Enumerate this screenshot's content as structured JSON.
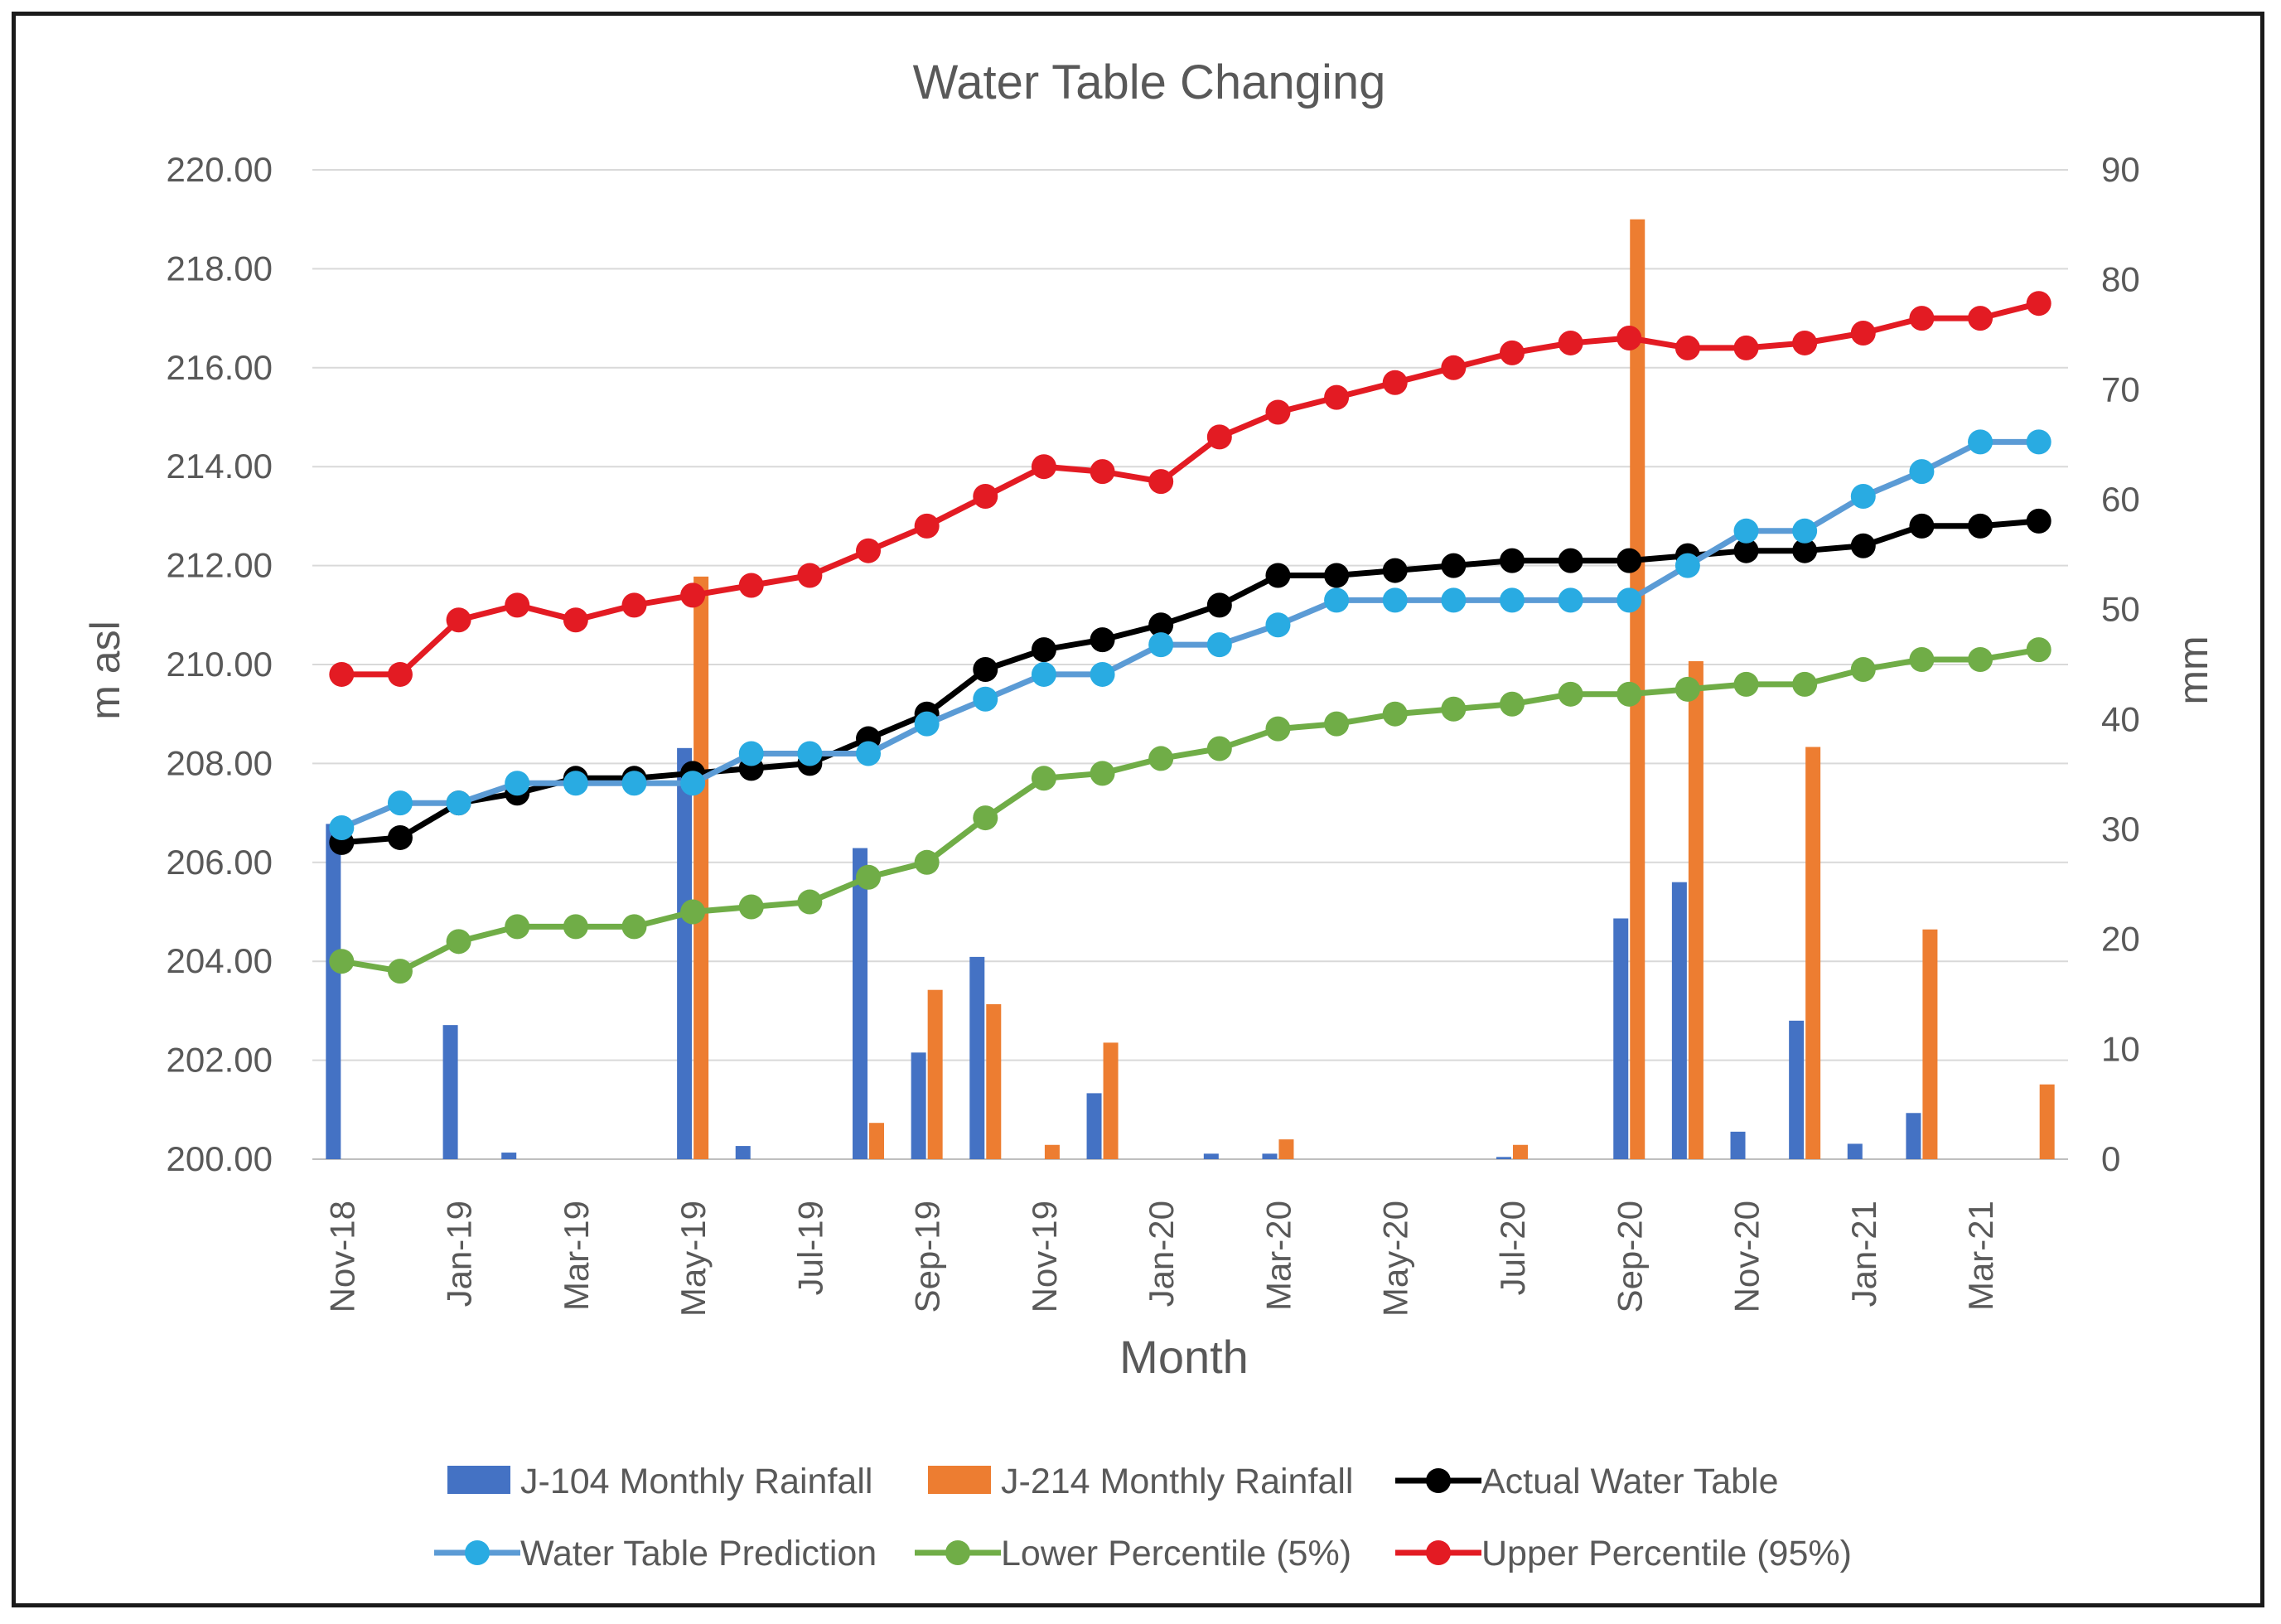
{
  "chart_data": {
    "type": "bar+line",
    "title": "Water Table Changing",
    "xlabel": "Month",
    "ylabel_left": "m asl",
    "ylabel_right": "mm",
    "ylim_left": [
      200,
      220
    ],
    "ylim_right": [
      0,
      90
    ],
    "grid": true,
    "legend_placement": "bottom",
    "months": [
      "Nov-18",
      "Dec-18",
      "Jan-19",
      "Feb-19",
      "Mar-19",
      "Apr-19",
      "May-19",
      "Jun-19",
      "Jul-19",
      "Aug-19",
      "Sep-19",
      "Oct-19",
      "Nov-19",
      "Dec-19",
      "Jan-20",
      "Feb-20",
      "Mar-20",
      "Apr-20",
      "May-20",
      "Jun-20",
      "Jul-20",
      "Aug-20",
      "Sep-20",
      "Oct-20",
      "Nov-20",
      "Dec-20",
      "Jan-21",
      "Feb-21",
      "Mar-21",
      "Apr-21"
    ],
    "x_tick_labels": [
      "Nov-18",
      "Jan-19",
      "Mar-19",
      "May-19",
      "Jul-19",
      "Sep-19",
      "Nov-19",
      "Jan-20",
      "Mar-20",
      "May-20",
      "Jul-20",
      "Sep-20",
      "Nov-20",
      "Jan-21",
      "Mar-21"
    ],
    "y_left_ticks": [
      "200.00",
      "202.00",
      "204.00",
      "206.00",
      "208.00",
      "210.00",
      "212.00",
      "214.00",
      "216.00",
      "218.00",
      "220.00"
    ],
    "y_right_ticks": [
      "0",
      "10",
      "20",
      "30",
      "40",
      "50",
      "60",
      "70",
      "80",
      "90"
    ],
    "series": [
      {
        "name": "J-104 Monthly Rainfall",
        "kind": "bar",
        "axis": "right",
        "color": "#4472C4",
        "values": [
          30.5,
          0,
          12.2,
          0.6,
          0,
          0,
          37.4,
          1.2,
          0,
          28.3,
          9.7,
          18.4,
          0,
          6.0,
          0,
          0.5,
          0.5,
          0,
          0,
          0,
          0.2,
          0,
          21.9,
          25.2,
          2.5,
          12.6,
          1.4,
          4.2,
          0,
          0
        ]
      },
      {
        "name": "J-214 Monthly Rainfall",
        "kind": "bar",
        "axis": "right",
        "color": "#ED7D31",
        "values": [
          0,
          0,
          0,
          0,
          0,
          0,
          53.0,
          0,
          0,
          3.3,
          15.4,
          14.1,
          1.3,
          10.6,
          0,
          0,
          1.8,
          0,
          0,
          0,
          1.3,
          0,
          85.5,
          45.3,
          0,
          37.5,
          0,
          20.9,
          0,
          6.8
        ]
      },
      {
        "name": "Actual Water Table",
        "kind": "line",
        "axis": "left",
        "color": "#000000",
        "values": [
          206.4,
          206.5,
          207.2,
          207.4,
          207.7,
          207.7,
          207.8,
          207.9,
          208.0,
          208.5,
          209.0,
          209.9,
          210.3,
          210.5,
          210.8,
          211.2,
          211.8,
          211.8,
          211.9,
          212.0,
          212.1,
          212.1,
          212.1,
          212.2,
          212.3,
          212.3,
          212.4,
          212.8,
          212.8,
          212.9
        ]
      },
      {
        "name": "Water Table Prediction",
        "kind": "line",
        "axis": "left",
        "color": "#5B9BD5",
        "marker_color": "#29ABE2",
        "values": [
          206.7,
          207.2,
          207.2,
          207.6,
          207.6,
          207.6,
          207.6,
          208.2,
          208.2,
          208.2,
          208.8,
          209.3,
          209.8,
          209.8,
          210.4,
          210.4,
          210.8,
          211.3,
          211.3,
          211.3,
          211.3,
          211.3,
          211.3,
          212.0,
          212.7,
          212.7,
          213.4,
          213.9,
          214.5,
          214.5
        ]
      },
      {
        "name": "Lower Percentile (5%)",
        "kind": "line",
        "axis": "left",
        "color": "#70AD47",
        "values": [
          204.0,
          203.8,
          204.4,
          204.7,
          204.7,
          204.7,
          205.0,
          205.1,
          205.2,
          205.7,
          206.0,
          206.9,
          207.7,
          207.8,
          208.1,
          208.3,
          208.7,
          208.8,
          209.0,
          209.1,
          209.2,
          209.4,
          209.4,
          209.5,
          209.6,
          209.6,
          209.9,
          210.1,
          210.1,
          210.3
        ]
      },
      {
        "name": "Upper Percentile (95%)",
        "kind": "line",
        "axis": "left",
        "color": "#E31B23",
        "values": [
          209.8,
          209.8,
          210.9,
          211.2,
          210.9,
          211.2,
          211.4,
          211.6,
          211.8,
          212.3,
          212.8,
          213.4,
          214.0,
          213.9,
          213.7,
          214.6,
          215.1,
          215.4,
          215.7,
          216.0,
          216.3,
          216.5,
          216.6,
          216.4,
          216.4,
          216.5,
          216.7,
          217.0,
          217.0,
          217.3
        ]
      }
    ]
  }
}
